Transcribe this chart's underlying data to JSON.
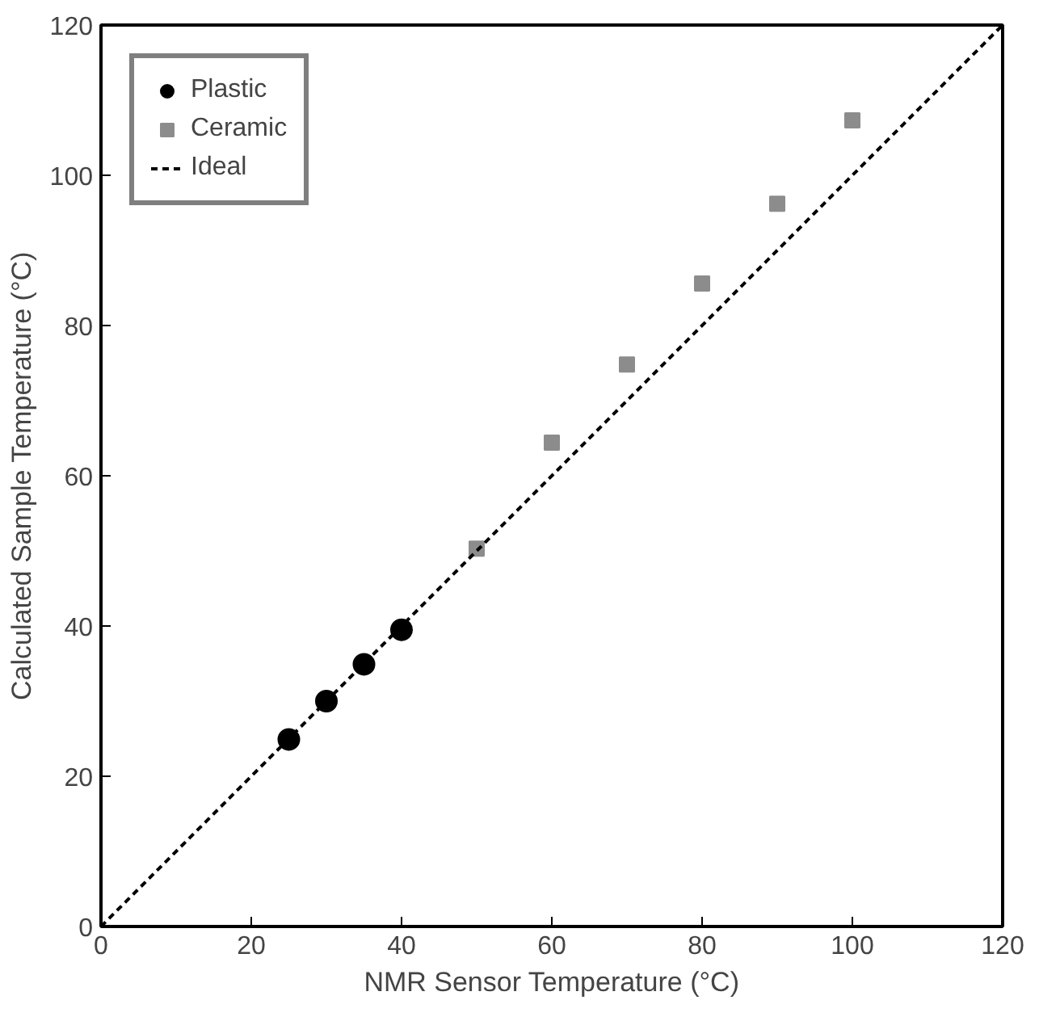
{
  "chart_data": {
    "type": "scatter",
    "xlabel": "NMR Sensor Temperature (°C)",
    "ylabel": "Calculated Sample Temperature (°C)",
    "xlim": [
      0,
      120
    ],
    "ylim": [
      0,
      120
    ],
    "xticks": [
      0,
      20,
      40,
      60,
      80,
      100,
      120
    ],
    "yticks": [
      0,
      20,
      40,
      60,
      80,
      100,
      120
    ],
    "grid": false,
    "legend": "top left",
    "series": [
      {
        "name": "Plastic",
        "color": "#000000",
        "marker": "circle",
        "x": [
          25,
          30,
          35,
          40
        ],
        "values": [
          24.9,
          30.0,
          34.9,
          39.5
        ]
      },
      {
        "name": "Ceramic",
        "color": "#8c8c8c",
        "marker": "square",
        "x": [
          50,
          60,
          70,
          80,
          90,
          100
        ],
        "values": [
          50.3,
          64.4,
          74.8,
          85.6,
          96.2,
          107.3
        ]
      },
      {
        "name": "Ideal",
        "type": "line",
        "color": "#000000",
        "line_style": "dashed",
        "x": [
          0,
          120
        ],
        "values": [
          0,
          120
        ]
      }
    ]
  }
}
